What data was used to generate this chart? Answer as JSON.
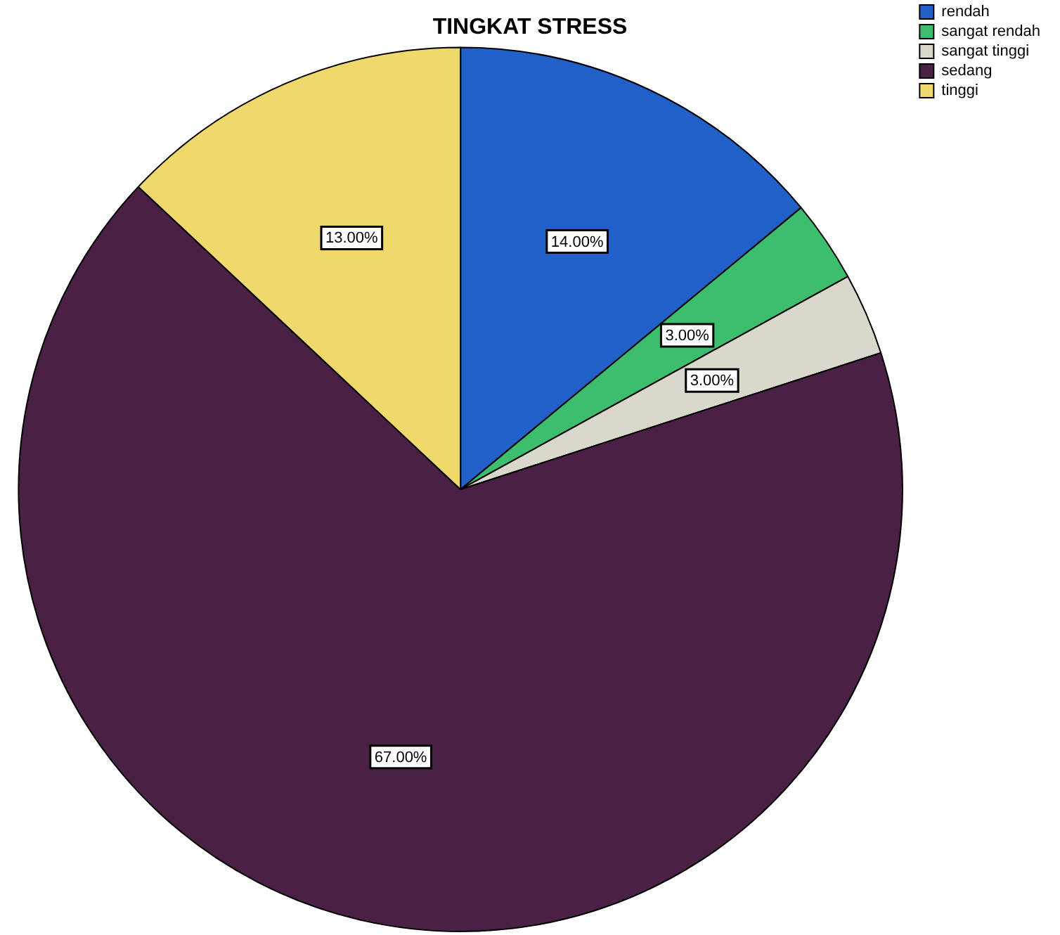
{
  "chart_data": {
    "type": "pie",
    "title": "TINGKAT STRESS",
    "categories": [
      "rendah",
      "sangat rendah",
      "sangat tinggi",
      "sedang",
      "tinggi"
    ],
    "values": [
      14,
      3,
      3,
      67,
      13
    ],
    "colors": [
      "#2060c8",
      "#3dbd6e",
      "#d8d8cc",
      "#4a2145",
      "#efd96d"
    ],
    "value_labels": [
      "14.00%",
      "3.00%",
      "3.00%",
      "67.00%",
      "13.00%"
    ],
    "legend": "top right"
  }
}
